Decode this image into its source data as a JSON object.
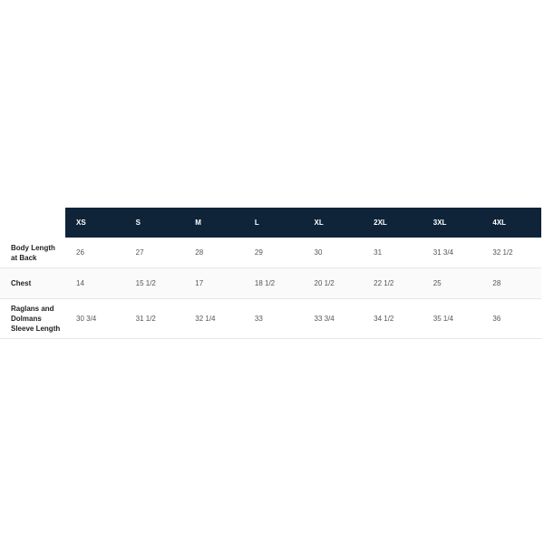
{
  "size_chart": {
    "columns": [
      "XS",
      "S",
      "M",
      "L",
      "XL",
      "2XL",
      "3XL",
      "4XL"
    ],
    "rows": [
      {
        "label": "Body Length at Back",
        "values": [
          "26",
          "27",
          "28",
          "29",
          "30",
          "31",
          "31 3/4",
          "32 1/2"
        ]
      },
      {
        "label": "Chest",
        "values": [
          "14",
          "15 1/2",
          "17",
          "18 1/2",
          "20 1/2",
          "22 1/2",
          "25",
          "28"
        ]
      },
      {
        "label": "Raglans and Dolmans Sleeve Length",
        "values": [
          "30 3/4",
          "31 1/2",
          "32 1/4",
          "33",
          "33 3/4",
          "34 1/2",
          "35 1/4",
          "36"
        ]
      }
    ],
    "colors": {
      "header_bg": "#0f2439",
      "header_text": "#ffffff",
      "alt_row_bg": "#fafafa"
    }
  }
}
